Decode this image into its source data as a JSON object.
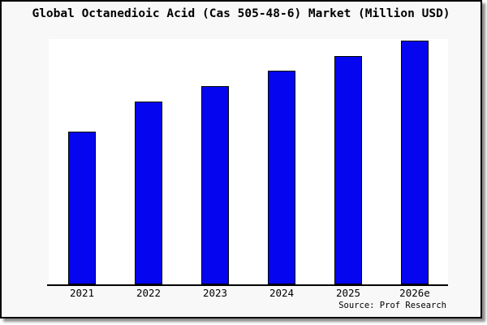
{
  "chart": {
    "title": "Global Octanedioic Acid (Cas 505-48-6) Market (Million USD)",
    "source_label": "Source: Prof Research"
  },
  "colors": {
    "bar_fill": "#0505f0",
    "bar_border": "#000000",
    "figure_background": "#f8f8f8",
    "plot_background": "#ffffff",
    "frame_border": "#000000",
    "text": "#000000"
  },
  "chart_data": {
    "type": "bar",
    "title": "Global Octanedioic Acid (Cas 505-48-6) Market (Million USD)",
    "categories": [
      "2021",
      "2022",
      "2023",
      "2024",
      "2025",
      "2026e"
    ],
    "values": [
      62.7,
      75.0,
      81.3,
      87.7,
      93.7,
      100.0
    ],
    "values_note": "No y-axis or data labels shown; values estimated from bar heights relative to tallest bar (2026e = 100).",
    "xlabel": "",
    "ylabel": "",
    "ylim": [
      0,
      100.7
    ],
    "grid": false,
    "legend": false,
    "bar_color": "#0505f0",
    "source": "Source: Prof Research"
  }
}
